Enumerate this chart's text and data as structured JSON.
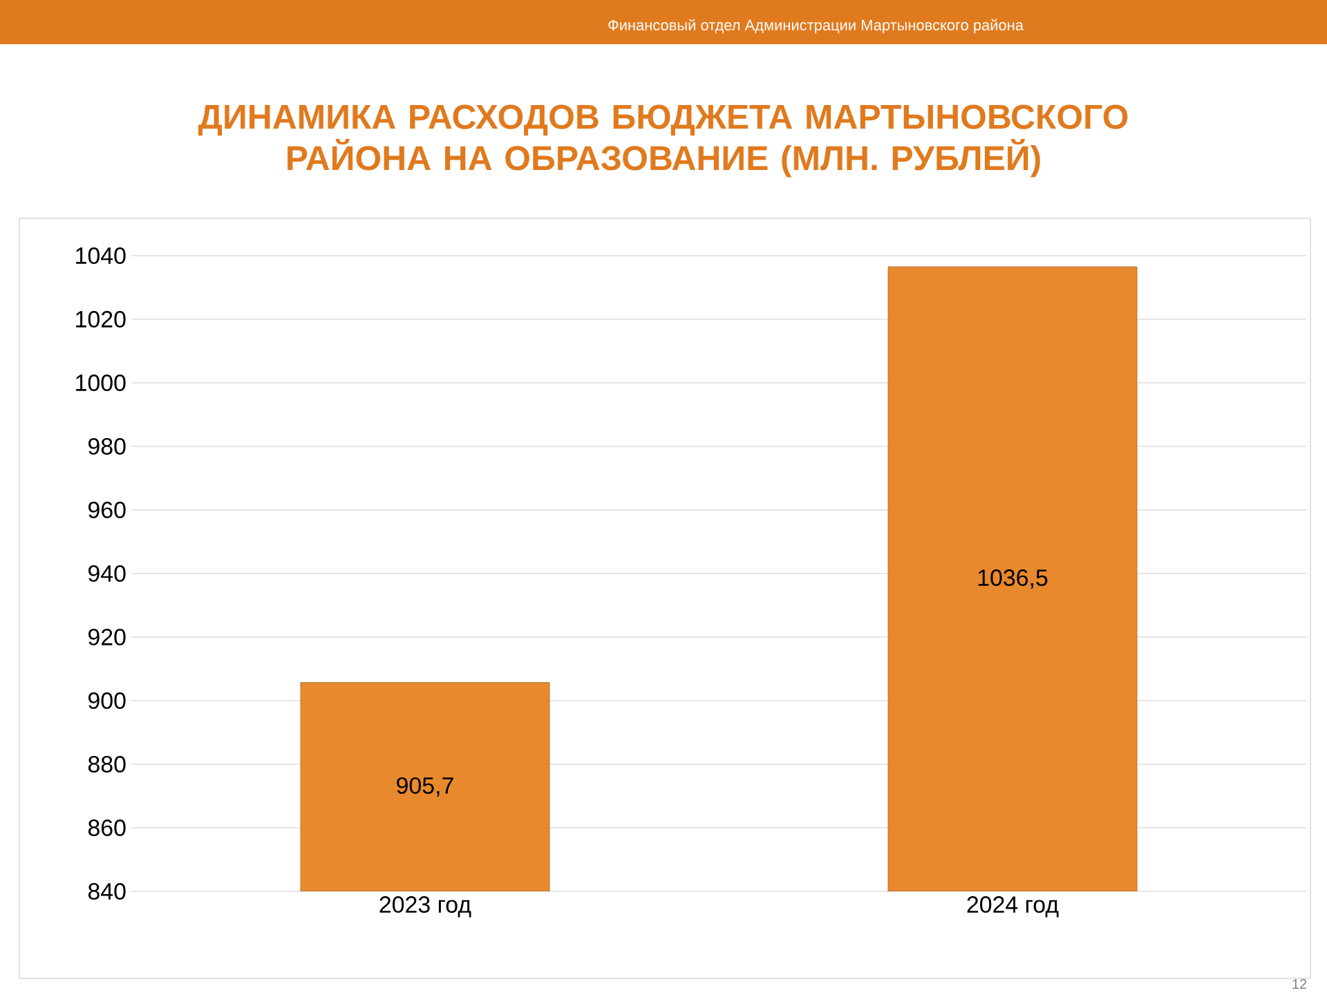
{
  "chart_data": {
    "type": "bar",
    "title": "ДИНАМИКА РАСХОДОВ БЮДЖЕТА МАРТЫНОВСКОГО РАЙОНА НА ОБРАЗОВАНИЕ (МЛН. РУБЛЕЙ)",
    "annotations": [
      "Финансовый  отдел Администрации  Мартыновского района",
      "12"
    ],
    "categories": [
      "2023 год",
      "2024 год"
    ],
    "values": [
      905.7,
      1036.5
    ],
    "value_labels": [
      "905,7",
      "1036,5"
    ],
    "color": "#e8892e",
    "ylim": [
      840,
      1040
    ],
    "yticks": [
      840,
      860,
      880,
      900,
      920,
      940,
      960,
      980,
      1000,
      1020,
      1040
    ],
    "grid": "y"
  }
}
